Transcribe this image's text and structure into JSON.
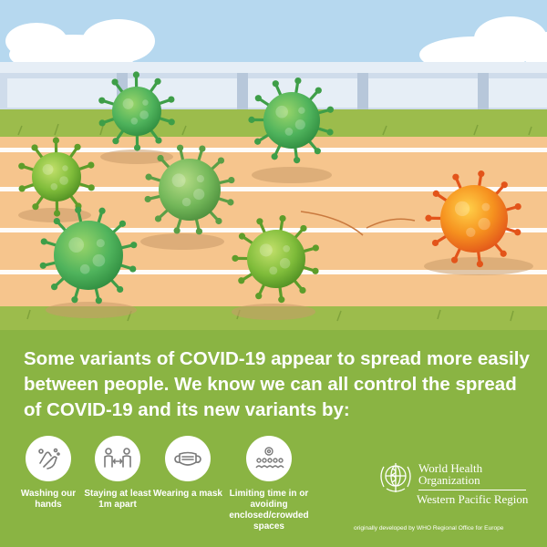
{
  "headline": "Some variants of COVID-19 appear to spread more easily between people. We know we can all control the spread of COVID-19 and its new variants by:",
  "actions": [
    {
      "icon": "hand-washing-icon",
      "label": "Washing our hands"
    },
    {
      "icon": "distance-icon",
      "label": "Staying at least 1m apart"
    },
    {
      "icon": "mask-icon",
      "label": "Wearing a mask"
    },
    {
      "icon": "crowd-icon",
      "label": "Limiting time in or avoiding enclosed/crowded spaces"
    }
  ],
  "organization": {
    "line1": "World Health",
    "line2": "Organization",
    "region": "Western Pacific Region",
    "emblem_icon": "who-emblem-icon"
  },
  "credit": "originally developed by WHO Regional Office for Europe",
  "colors": {
    "panel_green": "#8ab443",
    "track_orange": "#f6c58d",
    "grass_green": "#9cbc4c",
    "sky_blue": "#b6d8ef",
    "virus_green": "#4fb35c",
    "variant_orange": "#f06d1f"
  }
}
